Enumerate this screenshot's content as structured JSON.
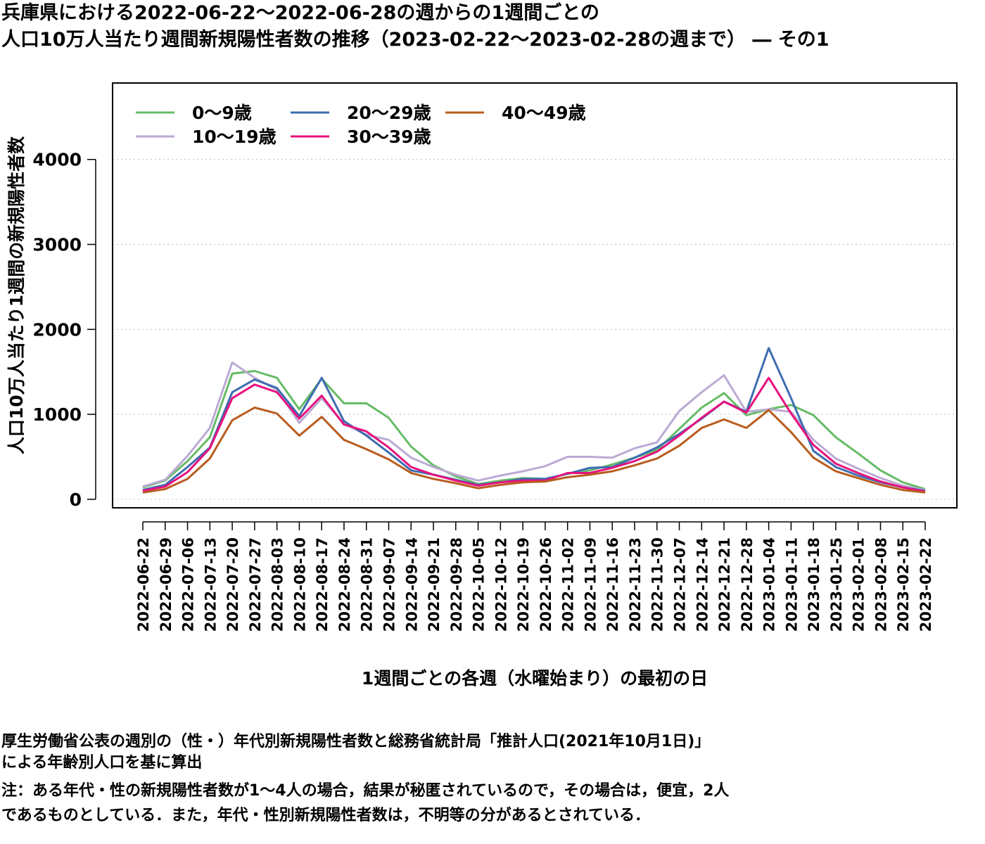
{
  "title": {
    "line1": "兵庫県における2022-06-22〜2022-06-28の週からの1週間ごとの",
    "line2": "人口10万人当たり週間新規陽性者数の推移（2023-02-22〜2023-02-28の週まで） ― その1"
  },
  "footnotes": {
    "line1": "厚生労働省公表の週別の（性・）年代別新規陽性者数と総務省統計局「推計人口(2021年10月1日)」",
    "line2": "による年齢別人口を基に算出",
    "line3": "注：ある年代・性の新規陽性者数が1〜4人の場合，結果が秘匿されているので，その場合は，便宜，2人",
    "line4": "であるものとしている．また，年代・性別新規陽性者数は，不明等の分があるとされている．"
  },
  "chart_data": {
    "type": "line",
    "xlabel": "1週間ごとの各週（水曜始まり）の最初の日",
    "ylabel": "人口10万人当たり1週間の新規陽性者数",
    "ylim": [
      -100,
      4900
    ],
    "yticks": [
      0,
      1000,
      2000,
      3000,
      4000
    ],
    "grid": "horizontal dotted",
    "legend_position": "top-left",
    "categories": [
      "2022-06-22",
      "2022-06-29",
      "2022-07-06",
      "2022-07-13",
      "2022-07-20",
      "2022-07-27",
      "2022-08-03",
      "2022-08-10",
      "2022-08-17",
      "2022-08-24",
      "2022-08-31",
      "2022-09-07",
      "2022-09-14",
      "2022-09-21",
      "2022-09-28",
      "2022-10-05",
      "2022-10-12",
      "2022-10-19",
      "2022-10-26",
      "2022-11-02",
      "2022-11-09",
      "2022-11-16",
      "2022-11-23",
      "2022-11-30",
      "2022-12-07",
      "2022-12-14",
      "2022-12-21",
      "2022-12-28",
      "2023-01-04",
      "2023-01-11",
      "2023-01-18",
      "2023-01-25",
      "2023-02-01",
      "2023-02-08",
      "2023-02-15",
      "2023-02-22"
    ],
    "series": [
      {
        "name": "0〜9歳",
        "color": "#66bb66",
        "values": [
          140,
          220,
          450,
          730,
          1480,
          1510,
          1430,
          1060,
          1420,
          1130,
          1130,
          960,
          620,
          400,
          270,
          180,
          220,
          250,
          240,
          300,
          340,
          410,
          490,
          580,
          830,
          1080,
          1250,
          990,
          1060,
          1110,
          990,
          730,
          540,
          340,
          200,
          120
        ]
      },
      {
        "name": "10〜19歳",
        "color": "#bbaad4",
        "values": [
          150,
          230,
          510,
          840,
          1610,
          1430,
          1290,
          900,
          1190,
          890,
          760,
          700,
          490,
          380,
          290,
          220,
          280,
          330,
          390,
          500,
          500,
          490,
          600,
          670,
          1040,
          1260,
          1460,
          1030,
          1060,
          1030,
          700,
          480,
          360,
          250,
          160,
          110
        ]
      },
      {
        "name": "20〜29歳",
        "color": "#3d6db0",
        "values": [
          110,
          170,
          380,
          610,
          1260,
          1410,
          1310,
          980,
          1430,
          920,
          750,
          550,
          340,
          290,
          230,
          170,
          200,
          240,
          240,
          300,
          370,
          380,
          490,
          610,
          770,
          950,
          1150,
          1030,
          1780,
          1190,
          570,
          380,
          280,
          200,
          140,
          100
        ]
      },
      {
        "name": "30〜39歳",
        "color": "#e7117e",
        "values": [
          100,
          150,
          320,
          600,
          1190,
          1350,
          1260,
          950,
          1220,
          880,
          800,
          610,
          380,
          290,
          220,
          160,
          200,
          220,
          220,
          310,
          310,
          370,
          450,
          560,
          750,
          960,
          1150,
          1020,
          1430,
          1010,
          640,
          420,
          310,
          210,
          140,
          90
        ]
      },
      {
        "name": "40〜49歳",
        "color": "#b85c1f",
        "values": [
          80,
          120,
          240,
          480,
          930,
          1080,
          1010,
          750,
          970,
          700,
          590,
          470,
          310,
          240,
          190,
          130,
          170,
          200,
          210,
          260,
          290,
          330,
          400,
          480,
          630,
          840,
          940,
          840,
          1050,
          790,
          490,
          330,
          250,
          170,
          110,
          80
        ]
      }
    ]
  }
}
